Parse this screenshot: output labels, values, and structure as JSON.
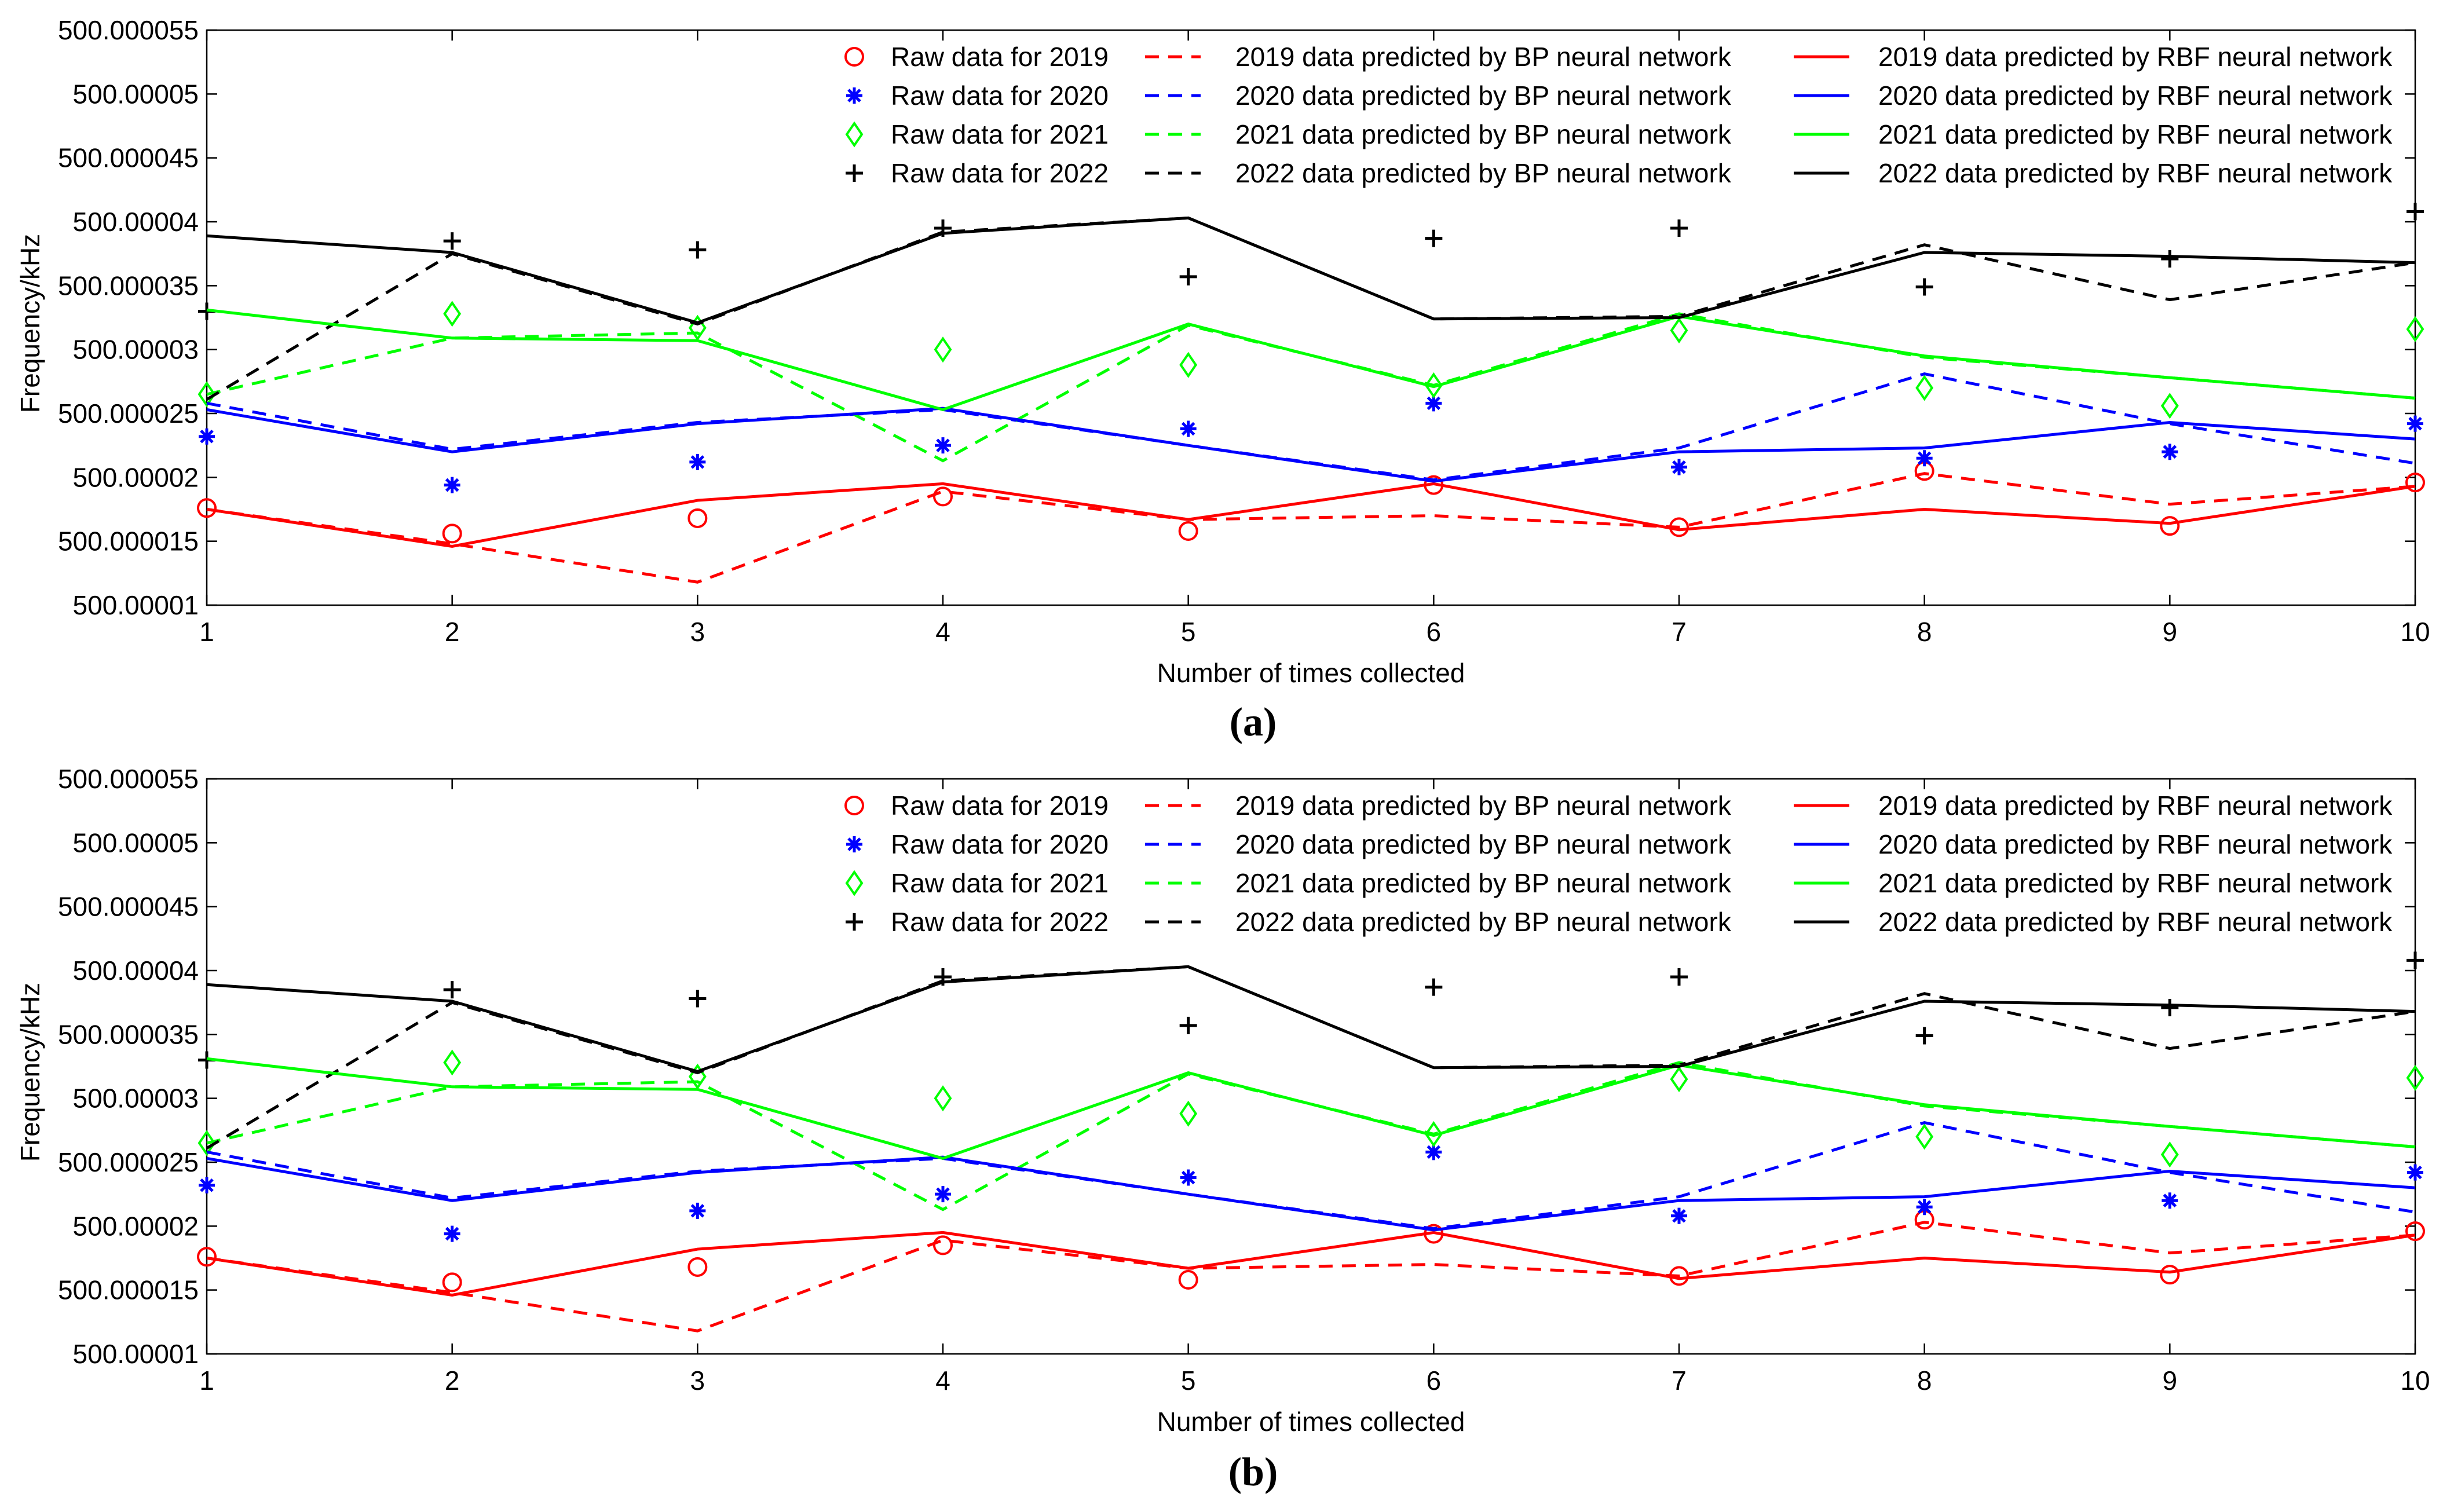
{
  "figure": {
    "panel_labels": [
      "(a)",
      "(b)"
    ]
  },
  "colors": {
    "red": "#ff0000",
    "blue": "#0000ff",
    "green": "#00ff00",
    "black": "#000000"
  },
  "chart_data": [
    {
      "panel": "(a)",
      "type": "line",
      "xlabel": "Number of times collected",
      "ylabel": "Frequency/kHz",
      "xlim": [
        1,
        10
      ],
      "ylim": [
        500.00001,
        500.000055
      ],
      "x": [
        1,
        2,
        3,
        4,
        5,
        6,
        7,
        8,
        9,
        10
      ],
      "x_ticks": [
        "1",
        "2",
        "3",
        "4",
        "5",
        "6",
        "7",
        "8",
        "9",
        "10"
      ],
      "y_ticks": [
        "500.00001",
        "500.000015",
        "500.00002",
        "500.000025",
        "500.00003",
        "500.000035",
        "500.00004",
        "500.000045",
        "500.00005",
        "500.000055"
      ],
      "y_tick_values": [
        500.00001,
        500.000015,
        500.00002,
        500.000025,
        500.00003,
        500.000035,
        500.00004,
        500.000045,
        500.00005,
        500.000055
      ],
      "legend": [
        {
          "label": "Raw data for 2019",
          "color": "#ff0000",
          "marker": "circle"
        },
        {
          "label": "Raw data for 2020",
          "color": "#0000ff",
          "marker": "asterisk"
        },
        {
          "label": "Raw data for 2021",
          "color": "#00ff00",
          "marker": "diamond"
        },
        {
          "label": "Raw data for 2022",
          "color": "#000000",
          "marker": "plus"
        },
        {
          "label": "2019 data predicted by BP neural network",
          "color": "#ff0000",
          "line": "dashed"
        },
        {
          "label": "2020 data predicted by BP neural network",
          "color": "#0000ff",
          "line": "dashed"
        },
        {
          "label": "2021 data predicted by BP neural network",
          "color": "#00ff00",
          "line": "dashed"
        },
        {
          "label": "2022 data predicted by BP neural network",
          "color": "#000000",
          "line": "dashed"
        },
        {
          "label": "2019 data predicted by RBF neural network",
          "color": "#ff0000",
          "line": "solid"
        },
        {
          "label": "2020 data predicted by RBF neural network",
          "color": "#0000ff",
          "line": "solid"
        },
        {
          "label": "2021 data predicted by RBF neural network",
          "color": "#00ff00",
          "line": "solid"
        },
        {
          "label": "2022 data predicted by RBF neural network",
          "color": "#000000",
          "line": "solid"
        }
      ],
      "series": [
        {
          "name": "Raw data for 2019",
          "color": "#ff0000",
          "style": "circle",
          "values": [
            500.0000176,
            500.0000156,
            500.0000168,
            500.0000185,
            500.0000158,
            500.0000194,
            500.0000161,
            500.0000205,
            500.0000162,
            500.0000196
          ]
        },
        {
          "name": "Raw data for 2020",
          "color": "#0000ff",
          "style": "asterisk",
          "values": [
            500.0000232,
            500.0000194,
            500.0000212,
            500.0000225,
            500.0000238,
            500.0000258,
            500.0000208,
            500.0000215,
            500.000022,
            500.0000242
          ]
        },
        {
          "name": "Raw data for 2021",
          "color": "#00ff00",
          "style": "diamond",
          "values": [
            500.0000265,
            500.0000328,
            500.0000317,
            500.00003,
            500.0000288,
            500.0000272,
            500.0000315,
            500.000027,
            500.0000256,
            500.0000316
          ]
        },
        {
          "name": "Raw data for 2022",
          "color": "#000000",
          "style": "plus",
          "values": [
            500.000033,
            500.0000385,
            500.0000378,
            500.0000395,
            500.0000357,
            500.0000387,
            500.0000395,
            500.0000349,
            500.0000371,
            500.0000408
          ]
        },
        {
          "name": "2019 data predicted by BP neural network",
          "color": "#ff0000",
          "style": "dashed",
          "values": [
            500.0000175,
            500.0000148,
            500.0000118,
            500.0000189,
            500.0000167,
            500.000017,
            500.0000161,
            500.0000203,
            500.0000179,
            500.0000193
          ]
        },
        {
          "name": "2020 data predicted by BP neural network",
          "color": "#0000ff",
          "style": "dashed",
          "values": [
            500.0000258,
            500.0000222,
            500.0000243,
            500.0000253,
            500.0000225,
            500.0000198,
            500.0000223,
            500.0000281,
            500.0000242,
            500.0000211
          ]
        },
        {
          "name": "2021 data predicted by BP neural network",
          "color": "#00ff00",
          "style": "dashed",
          "values": [
            500.0000265,
            500.0000309,
            500.0000313,
            500.0000213,
            500.0000319,
            500.0000272,
            500.0000328,
            500.0000294,
            500.0000278,
            500.0000262
          ]
        },
        {
          "name": "2022 data predicted by BP neural network",
          "color": "#000000",
          "style": "dashed",
          "values": [
            500.0000261,
            500.0000375,
            500.000032,
            500.0000392,
            500.0000403,
            500.0000324,
            500.0000326,
            500.0000382,
            500.0000339,
            500.0000368
          ]
        },
        {
          "name": "2019 data predicted by RBF neural network",
          "color": "#ff0000",
          "style": "solid",
          "values": [
            500.0000175,
            500.0000146,
            500.0000182,
            500.0000195,
            500.0000167,
            500.0000195,
            500.0000159,
            500.0000175,
            500.0000164,
            500.0000193
          ]
        },
        {
          "name": "2020 data predicted by RBF neural network",
          "color": "#0000ff",
          "style": "solid",
          "values": [
            500.0000253,
            500.000022,
            500.0000242,
            500.0000254,
            500.0000225,
            500.0000197,
            500.000022,
            500.0000223,
            500.0000243,
            500.000023
          ]
        },
        {
          "name": "2021 data predicted by RBF neural network",
          "color": "#00ff00",
          "style": "solid",
          "values": [
            500.0000331,
            500.0000309,
            500.0000307,
            500.0000253,
            500.000032,
            500.0000271,
            500.0000326,
            500.0000295,
            500.0000278,
            500.0000262
          ]
        },
        {
          "name": "2022 data predicted by RBF neural network",
          "color": "#000000",
          "style": "solid",
          "values": [
            500.0000389,
            500.0000376,
            500.0000321,
            500.0000391,
            500.0000403,
            500.0000324,
            500.0000325,
            500.0000376,
            500.0000373,
            500.0000368
          ]
        }
      ]
    },
    {
      "panel": "(b)",
      "type": "line",
      "xlabel": "Number of times collected",
      "ylabel": "Frequency/kHz",
      "xlim": [
        1,
        10
      ],
      "ylim": [
        500.00001,
        500.000055
      ],
      "x": [
        1,
        2,
        3,
        4,
        5,
        6,
        7,
        8,
        9,
        10
      ],
      "x_ticks": [
        "1",
        "2",
        "3",
        "4",
        "5",
        "6",
        "7",
        "8",
        "9",
        "10"
      ],
      "y_ticks": [
        "500.00001",
        "500.000015",
        "500.00002",
        "500.000025",
        "500.00003",
        "500.000035",
        "500.00004",
        "500.000045",
        "500.00005",
        "500.000055"
      ],
      "y_tick_values": [
        500.00001,
        500.000015,
        500.00002,
        500.000025,
        500.00003,
        500.000035,
        500.00004,
        500.000045,
        500.00005,
        500.000055
      ],
      "legend": [
        {
          "label": "Raw data for 2019",
          "color": "#ff0000",
          "marker": "circle"
        },
        {
          "label": "Raw data for 2020",
          "color": "#0000ff",
          "marker": "asterisk"
        },
        {
          "label": "Raw data for 2021",
          "color": "#00ff00",
          "marker": "diamond"
        },
        {
          "label": "Raw data for 2022",
          "color": "#000000",
          "marker": "plus"
        },
        {
          "label": "2019 data predicted by BP neural network",
          "color": "#ff0000",
          "line": "dashed"
        },
        {
          "label": "2020 data predicted by BP neural network",
          "color": "#0000ff",
          "line": "dashed"
        },
        {
          "label": "2021 data predicted by BP neural network",
          "color": "#00ff00",
          "line": "dashed"
        },
        {
          "label": "2022 data predicted by BP neural network",
          "color": "#000000",
          "line": "dashed"
        },
        {
          "label": "2019 data predicted by RBF neural network",
          "color": "#ff0000",
          "line": "solid"
        },
        {
          "label": "2020 data predicted by RBF neural network",
          "color": "#0000ff",
          "line": "solid"
        },
        {
          "label": "2021 data predicted by RBF neural network",
          "color": "#00ff00",
          "line": "solid"
        },
        {
          "label": "2022 data predicted by RBF neural network",
          "color": "#000000",
          "line": "solid"
        }
      ],
      "series": [
        {
          "name": "Raw data for 2019",
          "color": "#ff0000",
          "style": "circle",
          "values": [
            500.0000176,
            500.0000156,
            500.0000168,
            500.0000185,
            500.0000158,
            500.0000194,
            500.0000161,
            500.0000205,
            500.0000162,
            500.0000196
          ]
        },
        {
          "name": "Raw data for 2020",
          "color": "#0000ff",
          "style": "asterisk",
          "values": [
            500.0000232,
            500.0000194,
            500.0000212,
            500.0000225,
            500.0000238,
            500.0000258,
            500.0000208,
            500.0000215,
            500.000022,
            500.0000242
          ]
        },
        {
          "name": "Raw data for 2021",
          "color": "#00ff00",
          "style": "diamond",
          "values": [
            500.0000265,
            500.0000328,
            500.0000317,
            500.00003,
            500.0000288,
            500.0000272,
            500.0000315,
            500.000027,
            500.0000256,
            500.0000316
          ]
        },
        {
          "name": "Raw data for 2022",
          "color": "#000000",
          "style": "plus",
          "values": [
            500.000033,
            500.0000385,
            500.0000378,
            500.0000395,
            500.0000357,
            500.0000387,
            500.0000395,
            500.0000349,
            500.0000371,
            500.0000408
          ]
        },
        {
          "name": "2019 data predicted by BP neural network",
          "color": "#ff0000",
          "style": "dashed",
          "values": [
            500.0000175,
            500.0000148,
            500.0000118,
            500.0000189,
            500.0000167,
            500.000017,
            500.0000161,
            500.0000203,
            500.0000179,
            500.0000193
          ]
        },
        {
          "name": "2020 data predicted by BP neural network",
          "color": "#0000ff",
          "style": "dashed",
          "values": [
            500.0000258,
            500.0000222,
            500.0000243,
            500.0000253,
            500.0000225,
            500.0000198,
            500.0000223,
            500.0000281,
            500.0000242,
            500.0000211
          ]
        },
        {
          "name": "2021 data predicted by BP neural network",
          "color": "#00ff00",
          "style": "dashed",
          "values": [
            500.0000265,
            500.0000309,
            500.0000313,
            500.0000213,
            500.0000319,
            500.0000272,
            500.0000328,
            500.0000294,
            500.0000278,
            500.0000262
          ]
        },
        {
          "name": "2022 data predicted by BP neural network",
          "color": "#000000",
          "style": "dashed",
          "values": [
            500.0000261,
            500.0000375,
            500.000032,
            500.0000392,
            500.0000403,
            500.0000324,
            500.0000326,
            500.0000382,
            500.0000339,
            500.0000368
          ]
        },
        {
          "name": "2019 data predicted by RBF neural network",
          "color": "#ff0000",
          "style": "solid",
          "values": [
            500.0000175,
            500.0000146,
            500.0000182,
            500.0000195,
            500.0000167,
            500.0000195,
            500.0000159,
            500.0000175,
            500.0000164,
            500.0000193
          ]
        },
        {
          "name": "2020 data predicted by RBF neural network",
          "color": "#0000ff",
          "style": "solid",
          "values": [
            500.0000253,
            500.000022,
            500.0000242,
            500.0000254,
            500.0000225,
            500.0000197,
            500.000022,
            500.0000223,
            500.0000243,
            500.000023
          ]
        },
        {
          "name": "2021 data predicted by RBF neural network",
          "color": "#00ff00",
          "style": "solid",
          "values": [
            500.0000331,
            500.0000309,
            500.0000307,
            500.0000253,
            500.000032,
            500.0000271,
            500.0000326,
            500.0000295,
            500.0000278,
            500.0000262
          ]
        },
        {
          "name": "2022 data predicted by RBF neural network",
          "color": "#000000",
          "style": "solid",
          "values": [
            500.0000389,
            500.0000376,
            500.0000321,
            500.0000391,
            500.0000403,
            500.0000324,
            500.0000325,
            500.0000376,
            500.0000373,
            500.0000368
          ]
        }
      ]
    }
  ]
}
